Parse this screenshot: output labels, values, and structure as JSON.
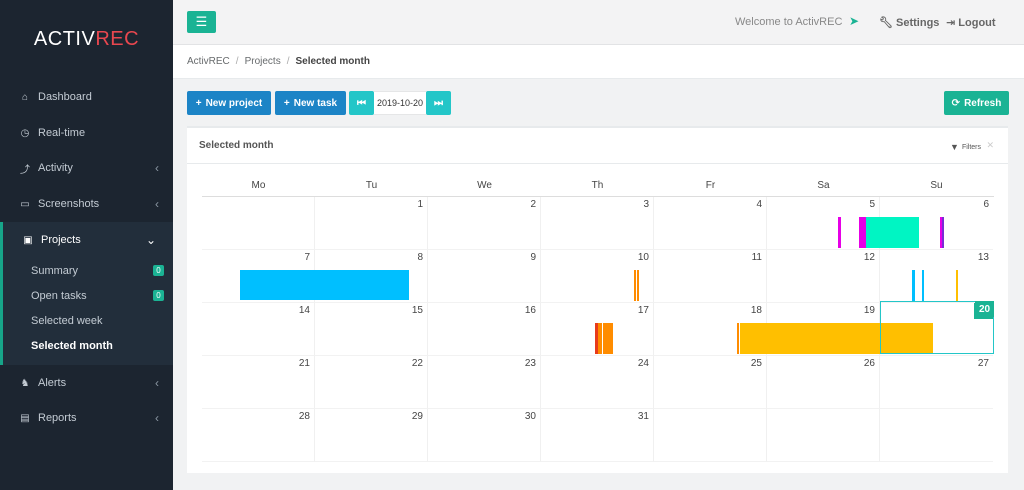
{
  "app": {
    "logo_a": "ACTIV",
    "logo_b": "REC"
  },
  "sidebar": {
    "items": [
      {
        "label": "Dashboard",
        "icon": "home-icon"
      },
      {
        "label": "Real-time",
        "icon": "clock-icon"
      },
      {
        "label": "Activity",
        "icon": "bolt-icon"
      },
      {
        "label": "Screenshots",
        "icon": "monitor-icon"
      },
      {
        "label": "Projects",
        "icon": "briefcase-icon"
      },
      {
        "label": "Alerts",
        "icon": "bell-icon"
      },
      {
        "label": "Reports",
        "icon": "bar-chart-icon"
      }
    ],
    "projects_sub": [
      {
        "label": "Summary",
        "badge": "0"
      },
      {
        "label": "Open tasks",
        "badge": "0"
      },
      {
        "label": "Selected week"
      },
      {
        "label": "Selected month"
      }
    ]
  },
  "topbar": {
    "welcome": "Welcome to ActivREC",
    "settings": "Settings",
    "logout": "Logout"
  },
  "breadcrumb": {
    "items": [
      "ActivREC",
      "Projects",
      "Selected month"
    ]
  },
  "toolbar": {
    "new_project": "New project",
    "new_task": "New task",
    "date": "2019-10-20",
    "refresh": "Refresh"
  },
  "panel": {
    "title": "Selected month",
    "filters": "Filters"
  },
  "calendar": {
    "days": [
      "Mo",
      "Tu",
      "We",
      "Th",
      "Fr",
      "Sa",
      "Su"
    ],
    "weeks": [
      [
        "",
        "1",
        "2",
        "3",
        "4",
        "5",
        "6"
      ],
      [
        "7",
        "8",
        "9",
        "10",
        "11",
        "12",
        "13"
      ],
      [
        "14",
        "15",
        "16",
        "17",
        "18",
        "19",
        "20"
      ],
      [
        "21",
        "22",
        "23",
        "24",
        "25",
        "26",
        "27"
      ],
      [
        "28",
        "29",
        "30",
        "31",
        "",
        "",
        ""
      ]
    ],
    "today": "20"
  },
  "colors": {
    "accent": "#1ab394",
    "blue_button": "#1c84c6",
    "teal_button": "#23c6c8",
    "bar_magenta": "#e600e6",
    "bar_aqua": "#00f5c3",
    "bar_sky": "#00bfff",
    "bar_orange": "#ff8c00",
    "bar_amber": "#ffbf00",
    "bar_red": "#e83b1b"
  }
}
